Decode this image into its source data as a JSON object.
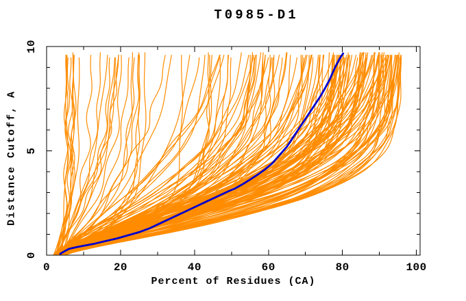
{
  "chart_data": {
    "type": "line",
    "title": "T0985-D1",
    "xlabel": "Percent of Residues (CA)",
    "ylabel": "Distance Cutoff, A",
    "xlim": [
      0,
      101
    ],
    "ylim": [
      0,
      10
    ],
    "xticks_major": [
      0,
      20,
      40,
      60,
      80,
      100
    ],
    "xticks_minor": [
      10,
      30,
      50,
      70,
      90
    ],
    "yticks_major": [
      0,
      5,
      10
    ],
    "yticks_minor": [
      1,
      2,
      3,
      4,
      6,
      7,
      8,
      9
    ],
    "grid": false,
    "legend_position": "none",
    "colors": {
      "background": "#ffffff",
      "axis": "#000000",
      "model_curves": "#ff8c00",
      "highlight_curve": "#0000cd"
    },
    "series": [
      {
        "name": "highlighted-model-curve",
        "color": "#0000cd",
        "line_width": 2.8,
        "points": [
          [
            3.5,
            0.05
          ],
          [
            5,
            0.2
          ],
          [
            6,
            0.3
          ],
          [
            8,
            0.38
          ],
          [
            10,
            0.45
          ],
          [
            13,
            0.55
          ],
          [
            16,
            0.68
          ],
          [
            19,
            0.8
          ],
          [
            22,
            0.95
          ],
          [
            25,
            1.1
          ],
          [
            28,
            1.3
          ],
          [
            31,
            1.55
          ],
          [
            34,
            1.8
          ],
          [
            37,
            2.05
          ],
          [
            40,
            2.3
          ],
          [
            43,
            2.55
          ],
          [
            46,
            2.8
          ],
          [
            49,
            3.05
          ],
          [
            51,
            3.2
          ],
          [
            53,
            3.4
          ],
          [
            55,
            3.62
          ],
          [
            57,
            3.85
          ],
          [
            59,
            4.1
          ],
          [
            61,
            4.4
          ],
          [
            63,
            4.8
          ],
          [
            65,
            5.2
          ],
          [
            66.5,
            5.6
          ],
          [
            68,
            6.0
          ],
          [
            69.5,
            6.4
          ],
          [
            71,
            6.8
          ],
          [
            72.5,
            7.2
          ],
          [
            74,
            7.6
          ],
          [
            75.3,
            8.0
          ],
          [
            76.5,
            8.4
          ],
          [
            77.5,
            8.8
          ],
          [
            78.3,
            9.1
          ],
          [
            79.2,
            9.4
          ],
          [
            80.3,
            9.7
          ]
        ]
      },
      {
        "name": "model-accuracy-curves",
        "color": "#ff8c00",
        "line_width": 1.2,
        "style": "procedural-band",
        "description": "Dense family of per-model accuracy curves; pct(d) = s + (e - s) * (1 - exp(-(d/m)^k)) with small sinusoidal wiggle",
        "generator": {
          "seed": 1337,
          "start_pct_range": [
            1.8,
            5.2
          ],
          "dmax_range": [
            9.55,
            9.75
          ],
          "wiggle_amp_range": [
            0.2,
            0.9
          ],
          "groups": [
            {
              "count": 10,
              "e_range": [
                4.5,
                9.5
              ],
              "e_pow": null,
              "m_range": [
                0.8,
                2.2
              ],
              "k_range": [
                0.9,
                1.4
              ]
            },
            {
              "count": 32,
              "e_range": [
                10,
                58
              ],
              "e_pow": null,
              "m_range": [
                1.5,
                5.5
              ],
              "k_range": [
                0.9,
                1.6
              ]
            },
            {
              "count": 126,
              "e_range": [
                54,
                96
              ],
              "e_pow": 1.7,
              "m_range": [
                2.2,
                4.2
              ],
              "k_range": [
                1.15,
                1.6
              ]
            }
          ]
        }
      }
    ]
  }
}
